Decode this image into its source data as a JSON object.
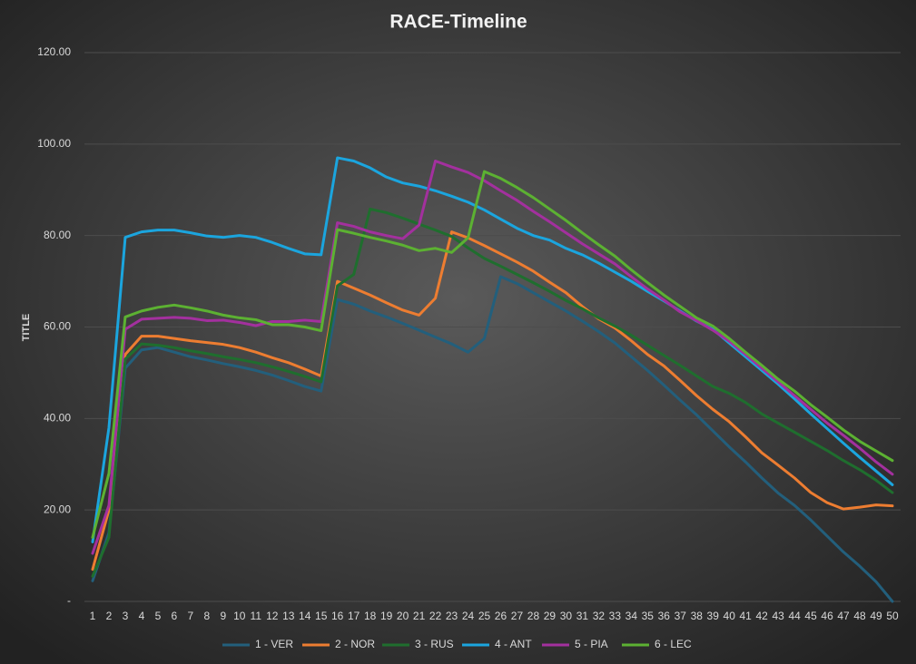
{
  "chart_data": {
    "type": "line",
    "title": "RACE-Timeline",
    "y_label": "TITLE",
    "categories": [
      "1",
      "2",
      "3",
      "4",
      "5",
      "6",
      "7",
      "8",
      "9",
      "10",
      "11",
      "12",
      "13",
      "14",
      "15",
      "16",
      "17",
      "18",
      "19",
      "20",
      "21",
      "22",
      "23",
      "24",
      "25",
      "26",
      "27",
      "28",
      "29",
      "30",
      "31",
      "32",
      "33",
      "34",
      "35",
      "36",
      "37",
      "38",
      "39",
      "40",
      "41",
      "42",
      "43",
      "44",
      "45",
      "46",
      "47",
      "48",
      "49",
      "50"
    ],
    "ylim": [
      0,
      120
    ],
    "yticks": [
      {
        "value": 0,
        "label": "-"
      },
      {
        "value": 20,
        "label": "20.00"
      },
      {
        "value": 40,
        "label": "40.00"
      },
      {
        "value": 60,
        "label": "60.00"
      },
      {
        "value": 80,
        "label": "80.00"
      },
      {
        "value": 100,
        "label": "100.00"
      },
      {
        "value": 120,
        "label": "120.00"
      }
    ],
    "grid": true,
    "legend": "bottom",
    "series": [
      {
        "name": "1 - VER",
        "color": "#235f7c",
        "values": [
          4.5,
          15,
          51,
          55,
          55.5,
          54.5,
          53.5,
          52.8,
          52,
          51.3,
          50.5,
          49.5,
          48.3,
          47,
          46,
          66,
          65,
          63.5,
          62.2,
          60.8,
          59.3,
          57.8,
          56.3,
          54.5,
          57.5,
          71,
          69.5,
          67.5,
          65.5,
          63.5,
          61.3,
          59,
          56.5,
          53.5,
          50.5,
          47.3,
          44,
          40.8,
          37.3,
          33.8,
          30.5,
          27,
          23.7,
          21,
          17.8,
          14.3,
          10.8,
          7.7,
          4.3,
          0
        ]
      },
      {
        "name": "2 - NOR",
        "color": "#ed7d31",
        "values": [
          7,
          20,
          54,
          58,
          58,
          57.5,
          57,
          56.6,
          56.2,
          55.5,
          54.5,
          53.3,
          52.2,
          50.8,
          49.3,
          70,
          68.5,
          67,
          65.3,
          63.7,
          62.6,
          66.3,
          80.8,
          79.5,
          77.8,
          76,
          74.2,
          72.2,
          69.8,
          67.5,
          64.5,
          61.8,
          59.8,
          57,
          54,
          51.5,
          48.3,
          45,
          42,
          39.3,
          36,
          32.5,
          29.8,
          27,
          23.8,
          21.6,
          20.2,
          20.6,
          21.1,
          20.9
        ]
      },
      {
        "name": "3 - RUS",
        "color": "#1f6e2e",
        "values": [
          5.5,
          14,
          53,
          56.3,
          56,
          55.5,
          54.8,
          54.2,
          53.5,
          52.9,
          52.2,
          51.3,
          50.3,
          49.2,
          48,
          69,
          71.5,
          85.8,
          85,
          83.8,
          82.5,
          81.2,
          79.8,
          77.3,
          75,
          73.3,
          71.5,
          69.7,
          67.8,
          65.8,
          64,
          62,
          60.2,
          58.2,
          56,
          53.8,
          51.6,
          49.3,
          47,
          45.5,
          43.5,
          41,
          39,
          37,
          35,
          33,
          30.8,
          28.8,
          26.5,
          23.8
        ]
      },
      {
        "name": "4 - ANT",
        "color": "#1ba5de",
        "values": [
          13,
          38,
          79.6,
          80.8,
          81.2,
          81.2,
          80.6,
          79.9,
          79.6,
          80,
          79.6,
          78.5,
          77.2,
          76,
          75.8,
          97,
          96.3,
          94.8,
          92.8,
          91.5,
          90.8,
          89.8,
          88.6,
          87.3,
          85.6,
          83.6,
          81.6,
          80,
          79,
          77.2,
          75.8,
          74,
          72,
          70,
          67.8,
          65.7,
          63.5,
          61.3,
          59.5,
          56.5,
          53.5,
          50.5,
          47.5,
          44.3,
          41,
          37.8,
          34.6,
          31.5,
          28.5,
          25.5
        ]
      },
      {
        "name": "5 - PIA",
        "color": "#a3309e",
        "values": [
          10.5,
          21,
          59.5,
          61.7,
          61.9,
          62.1,
          61.9,
          61.4,
          61.5,
          61,
          60.3,
          61.2,
          61.2,
          61.5,
          61.2,
          82.8,
          82,
          80.8,
          80,
          79.3,
          82.3,
          96.3,
          95,
          93.8,
          92,
          89.8,
          87.7,
          85.3,
          83,
          80.6,
          78.2,
          76,
          73.8,
          71,
          68.3,
          65.9,
          63.3,
          61.4,
          59.3,
          56.9,
          54,
          51,
          48,
          45,
          42,
          39,
          36.3,
          33.5,
          30.5,
          27.8
        ]
      },
      {
        "name": "6 - LEC",
        "color": "#5cb132",
        "values": [
          14,
          28,
          62.2,
          63.5,
          64.3,
          64.8,
          64.2,
          63.5,
          62.6,
          62,
          61.6,
          60.5,
          60.5,
          60,
          59.2,
          81.3,
          80.5,
          79.6,
          78.8,
          77.9,
          76.7,
          77.2,
          76.3,
          79.5,
          94,
          92.5,
          90.5,
          88.3,
          85.8,
          83.3,
          80.6,
          78,
          75.5,
          72.5,
          69.7,
          67,
          64.5,
          62,
          60.2,
          57.5,
          54.5,
          51.6,
          48.6,
          46,
          43,
          40.3,
          37.5,
          35,
          32.9,
          30.8
        ]
      }
    ]
  }
}
